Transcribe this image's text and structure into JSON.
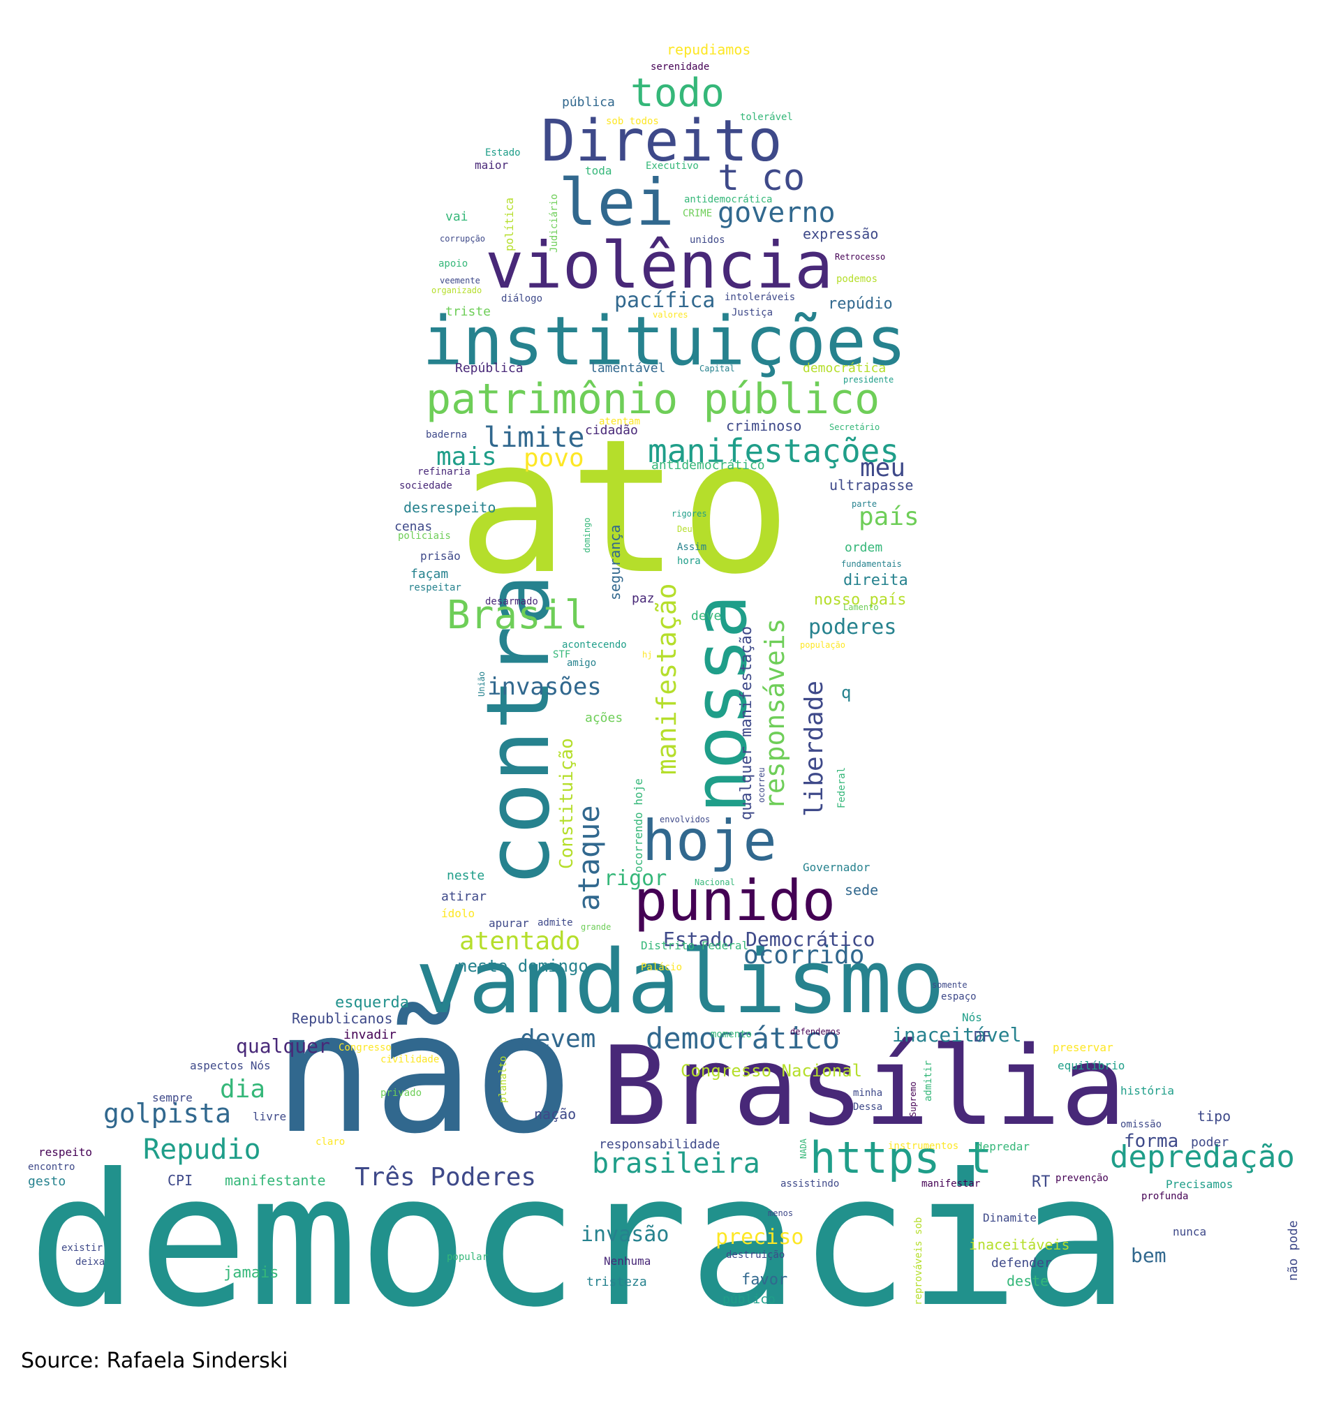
{
  "source": "Source: Rafaela Sinderski",
  "palette": [
    "#440154",
    "#482878",
    "#3e4989",
    "#31688e",
    "#26828e",
    "#1f9e89",
    "#35b779",
    "#6ece58",
    "#b5de2b",
    "#fde725"
  ],
  "words": [
    "democracia",
    "não",
    "ato",
    "Brasília",
    "vandalismo",
    "instituições",
    "violência",
    "contra",
    "nossa",
    "Direito",
    "patrimônio público",
    "lei",
    "hoje",
    "punido",
    "todo",
    "t co",
    "https t",
    "Brasil",
    "manifestações",
    "depredação",
    "governo",
    "democrático",
    "limite",
    "manifestação",
    "responsáveis",
    "ataque",
    "liberdade",
    "brasileira",
    "ocorrido",
    "atentado",
    "golpista",
    "invasões",
    "Repudio",
    "Três Poderes",
    "devem",
    "Estado Democrático",
    "país",
    "dia",
    "meu",
    "mais",
    "povo",
    "pacífica",
    "poderes",
    "inaceitável",
    "qualquer",
    "Constituição",
    "qualquer manifestação",
    "preciso",
    "invasão",
    "Congresso Nacional",
    "rigor",
    "neste domingo",
    "repúdio",
    "expressão",
    "criminoso",
    "esquerda",
    "bem",
    "forma",
    "Republicanos",
    "ultrapasse",
    "direita",
    "nosso país",
    "segurança",
    "desrespeito",
    "jamais",
    "inaceitáveis",
    "favor",
    "tristeza",
    "deste",
    "nação",
    "sede",
    "tipo",
    "poder",
    "pública",
    "maior",
    "vai",
    "toda",
    "Estado",
    "Executivo",
    "antidemocrática",
    "unidos",
    "Retrocesso",
    "apoio",
    "triste",
    "diálogo",
    "intoleráveis",
    "Justiça",
    "valores",
    "República",
    "lamentável",
    "democrática",
    "cidadão",
    "baderna",
    "refinaria",
    "sociedade",
    "antidemocrático",
    "cenas",
    "prisão",
    "façam",
    "respeitar",
    "ordem",
    "desarmado",
    "paz",
    "deve",
    "acontecendo",
    "amigo",
    "ações",
    "q",
    "ocorrendo hoje",
    "envolvidos",
    "neste",
    "atirar",
    "ídolo",
    "apurar",
    "admite",
    "grande",
    "Governador",
    "Distrito Federal",
    "Palácio",
    "somente",
    "espaço",
    "Nós",
    "DF",
    "momento",
    "defendemos",
    "invadir",
    "Congresso",
    "aspectos Nós",
    "sempre",
    "livre",
    "privado",
    "planalto",
    "minha",
    "Dessa",
    "Supremo",
    "admitir",
    "preservar",
    "equilíbrio",
    "história",
    "omissão",
    "respeito",
    "encontro",
    "gesto",
    "CPI",
    "manifestante",
    "claro",
    "responsabilidade",
    "NADA",
    "instrumentos",
    "depredar",
    "assistindo",
    "manifestar",
    "RT",
    "prevenção",
    "Precisamos",
    "profunda",
    "menos",
    "Dinamite",
    "nunca",
    "não pode",
    "existir",
    "deixa",
    "popular",
    "Nenhuma",
    "destruição",
    "defender",
    "público",
    "reprováveis sob",
    "repudiamos",
    "serenidade",
    "sob todos",
    "tolerável",
    "CRIME",
    "corrupção",
    "política",
    "Judiciário",
    "veemente",
    "organizado",
    "podemos",
    "Capital",
    "presidente",
    "atentam",
    "Secretário",
    "parte",
    "rigores",
    "Deus",
    "Assim",
    "hora",
    "fundamentais",
    "Lamento",
    "população",
    "STF",
    "hj",
    "União",
    "domingo",
    "policiais",
    "Nacional",
    "ocorreu",
    "Federal",
    "civilidade"
  ]
}
